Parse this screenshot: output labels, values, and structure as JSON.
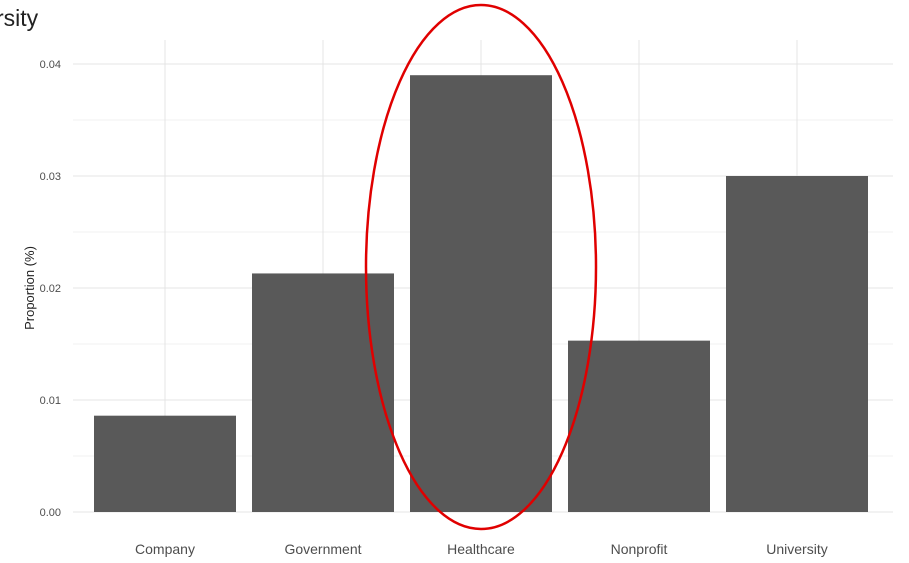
{
  "chart_data": {
    "type": "bar",
    "title": "rsity",
    "xlabel": "",
    "ylabel": "Proportion (%)",
    "categories": [
      "Company",
      "Government",
      "Healthcare",
      "Nonprofit",
      "University"
    ],
    "values": [
      0.0086,
      0.0213,
      0.039,
      0.0153,
      0.03
    ],
    "ylim": [
      0,
      0.04
    ],
    "yticks": [
      "0.00",
      "0.01",
      "0.02",
      "0.03",
      "0.04"
    ],
    "grid": true,
    "bar_color": "#595959",
    "highlight": {
      "category": "Healthcare",
      "shape": "ellipse",
      "color": "#e00000"
    }
  }
}
